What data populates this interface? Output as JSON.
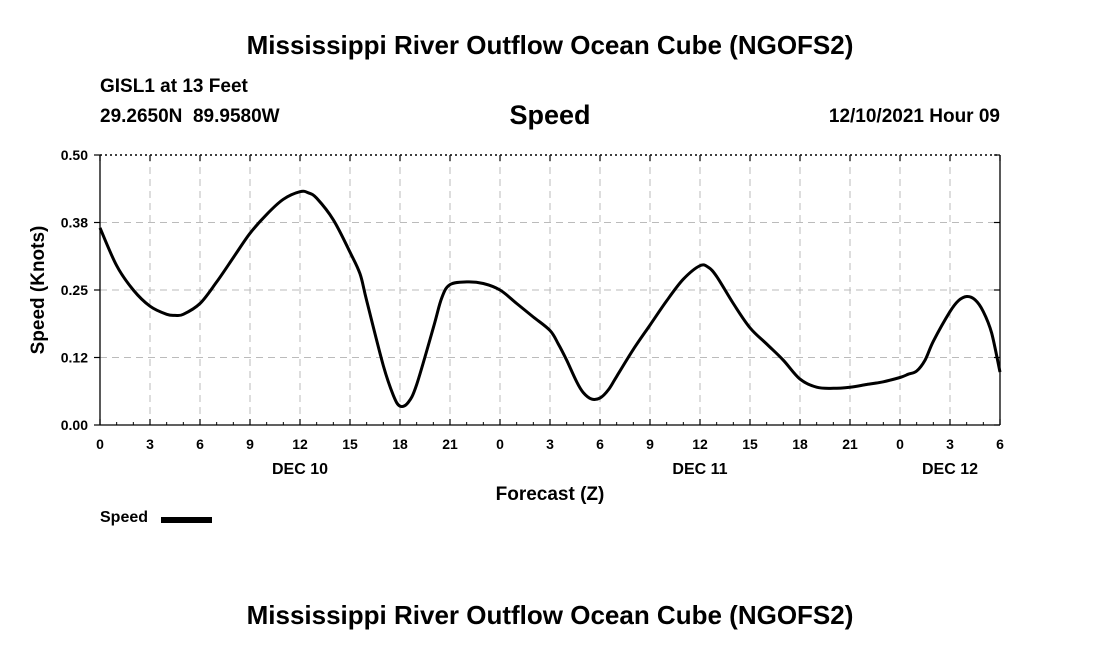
{
  "page": {
    "title": "Mississippi River Outflow Ocean Cube (NGOFS2)",
    "footer_title": "Mississippi River Outflow Ocean Cube (NGOFS2)"
  },
  "header": {
    "station": "GISL1 at 13 Feet",
    "coordinates": "29.2650N  89.9580W",
    "variable": "Speed",
    "datetime": "12/10/2021 Hour 09"
  },
  "legend": {
    "label": "Speed",
    "color": "#000000"
  },
  "chart_data": {
    "type": "line",
    "title": "Speed",
    "xlabel": "Forecast (Z)",
    "ylabel": "Speed (Knots)",
    "x_unit": "hours since 12/10 00Z",
    "xlim": [
      0,
      54
    ],
    "ylim": [
      0,
      0.5
    ],
    "grid": true,
    "legend_position": "below-left",
    "x_ticks": [
      0,
      3,
      6,
      9,
      12,
      15,
      18,
      21,
      24,
      27,
      30,
      33,
      36,
      39,
      42,
      45,
      48,
      51,
      54
    ],
    "x_tick_labels": [
      "0",
      "3",
      "6",
      "9",
      "12",
      "15",
      "18",
      "21",
      "0",
      "3",
      "6",
      "9",
      "12",
      "15",
      "18",
      "21",
      "0",
      "3",
      "6"
    ],
    "y_ticks": [
      0,
      0.125,
      0.25,
      0.375,
      0.5
    ],
    "y_tick_labels": [
      "0.00",
      "0.12",
      "0.25",
      "0.38",
      "0.50"
    ],
    "date_labels": [
      {
        "x": 12,
        "label": "DEC 10"
      },
      {
        "x": 36,
        "label": "DEC 11"
      },
      {
        "x": 51,
        "label": "DEC 12"
      }
    ],
    "series": [
      {
        "name": "Speed",
        "color": "#000000",
        "points": [
          [
            0,
            0.365
          ],
          [
            1,
            0.295
          ],
          [
            2,
            0.25
          ],
          [
            3,
            0.22
          ],
          [
            4,
            0.205
          ],
          [
            4.5,
            0.203
          ],
          [
            5,
            0.205
          ],
          [
            6,
            0.225
          ],
          [
            7,
            0.265
          ],
          [
            8,
            0.31
          ],
          [
            9,
            0.355
          ],
          [
            10,
            0.39
          ],
          [
            11,
            0.418
          ],
          [
            12,
            0.432
          ],
          [
            12.5,
            0.43
          ],
          [
            13,
            0.42
          ],
          [
            14,
            0.38
          ],
          [
            15,
            0.32
          ],
          [
            15.6,
            0.28
          ],
          [
            16,
            0.23
          ],
          [
            17,
            0.11
          ],
          [
            17.6,
            0.055
          ],
          [
            18,
            0.035
          ],
          [
            18.5,
            0.042
          ],
          [
            19,
            0.075
          ],
          [
            20,
            0.18
          ],
          [
            20.5,
            0.235
          ],
          [
            21,
            0.26
          ],
          [
            22,
            0.265
          ],
          [
            23,
            0.262
          ],
          [
            24,
            0.25
          ],
          [
            25,
            0.225
          ],
          [
            26,
            0.2
          ],
          [
            27,
            0.175
          ],
          [
            27.5,
            0.15
          ],
          [
            28,
            0.12
          ],
          [
            28.6,
            0.08
          ],
          [
            29,
            0.06
          ],
          [
            29.5,
            0.048
          ],
          [
            30,
            0.05
          ],
          [
            30.5,
            0.065
          ],
          [
            31,
            0.09
          ],
          [
            32,
            0.14
          ],
          [
            33,
            0.185
          ],
          [
            34,
            0.23
          ],
          [
            35,
            0.27
          ],
          [
            36,
            0.295
          ],
          [
            36.5,
            0.292
          ],
          [
            37,
            0.275
          ],
          [
            38,
            0.225
          ],
          [
            39,
            0.18
          ],
          [
            40,
            0.15
          ],
          [
            41,
            0.12
          ],
          [
            42,
            0.085
          ],
          [
            43,
            0.07
          ],
          [
            44,
            0.068
          ],
          [
            45,
            0.07
          ],
          [
            46,
            0.075
          ],
          [
            47,
            0.08
          ],
          [
            48,
            0.088
          ],
          [
            48.5,
            0.094
          ],
          [
            49,
            0.1
          ],
          [
            49.5,
            0.12
          ],
          [
            50,
            0.155
          ],
          [
            51,
            0.21
          ],
          [
            51.5,
            0.23
          ],
          [
            52,
            0.238
          ],
          [
            52.5,
            0.232
          ],
          [
            53,
            0.21
          ],
          [
            53.5,
            0.17
          ],
          [
            54,
            0.098
          ]
        ]
      }
    ]
  }
}
